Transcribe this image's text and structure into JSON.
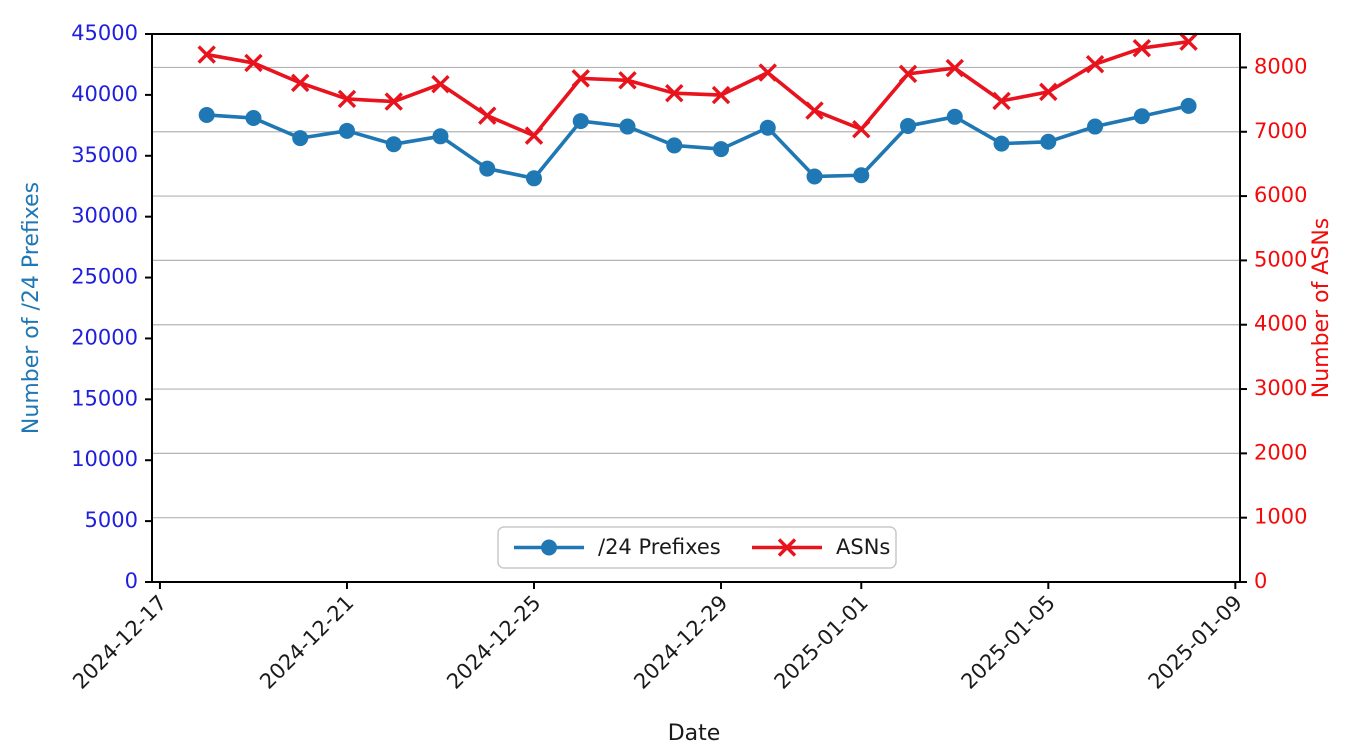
{
  "chart_data": {
    "type": "line",
    "title": "",
    "xlabel": "Date",
    "ylabel_left": "Number of /24 Prefixes",
    "ylabel_right": "Number of ASNs",
    "x": [
      "2024-12-18",
      "2024-12-19",
      "2024-12-20",
      "2024-12-21",
      "2024-12-22",
      "2024-12-23",
      "2024-12-24",
      "2024-12-25",
      "2024-12-26",
      "2024-12-27",
      "2024-12-28",
      "2024-12-29",
      "2024-12-30",
      "2024-12-31",
      "2025-01-01",
      "2025-01-02",
      "2025-01-03",
      "2025-01-04",
      "2025-01-05",
      "2025-01-06",
      "2025-01-07",
      "2025-01-08"
    ],
    "series": [
      {
        "name": "/24 Prefixes",
        "axis": "left",
        "color": "#1f77b4",
        "marker": "circle",
        "values": [
          38350,
          38100,
          36450,
          37050,
          35950,
          36600,
          33950,
          33150,
          37850,
          37400,
          35850,
          35550,
          37300,
          33300,
          33400,
          37450,
          38200,
          36000,
          36150,
          37400,
          38250,
          39100
        ]
      },
      {
        "name": "ASNs",
        "axis": "right",
        "color": "#e8131d",
        "marker": "x",
        "values": [
          8200,
          8070,
          7760,
          7510,
          7470,
          7740,
          7250,
          6940,
          7830,
          7800,
          7600,
          7570,
          7920,
          7330,
          7040,
          7900,
          7990,
          7480,
          7620,
          8050,
          8300,
          8400
        ]
      }
    ],
    "x_tick_labels": [
      "2024-12-17",
      "2024-12-21",
      "2024-12-25",
      "2024-12-29",
      "2025-01-01",
      "2025-01-05",
      "2025-01-09"
    ],
    "xlim_days_rel_first_point": [
      -1.17,
      22.1
    ],
    "ylim_left": [
      0,
      45000
    ],
    "yticks_left": [
      0,
      5000,
      10000,
      15000,
      20000,
      25000,
      30000,
      35000,
      40000,
      45000
    ],
    "ylim_right": [
      0,
      8520
    ],
    "yticks_right": [
      0,
      1000,
      2000,
      3000,
      4000,
      5000,
      6000,
      7000,
      8000
    ],
    "grid": "horizontal gridlines at right-axis ticks",
    "legend": {
      "position": "lower center",
      "entries": [
        "/24 Prefixes",
        "ASNs"
      ]
    },
    "colors": {
      "left_tick_labels": "#1f1fdd",
      "left_axis_label": "#1f77b4",
      "right_tick_labels": "#f30b0b",
      "right_axis_label": "#f30b0b",
      "blue_line": "#1f77b4",
      "red_line": "#e8131d",
      "gridline": "#b4b4b4",
      "spine": "#000000",
      "black_text": "#1a1a1a",
      "legend_border": "#c9c9c9"
    }
  }
}
